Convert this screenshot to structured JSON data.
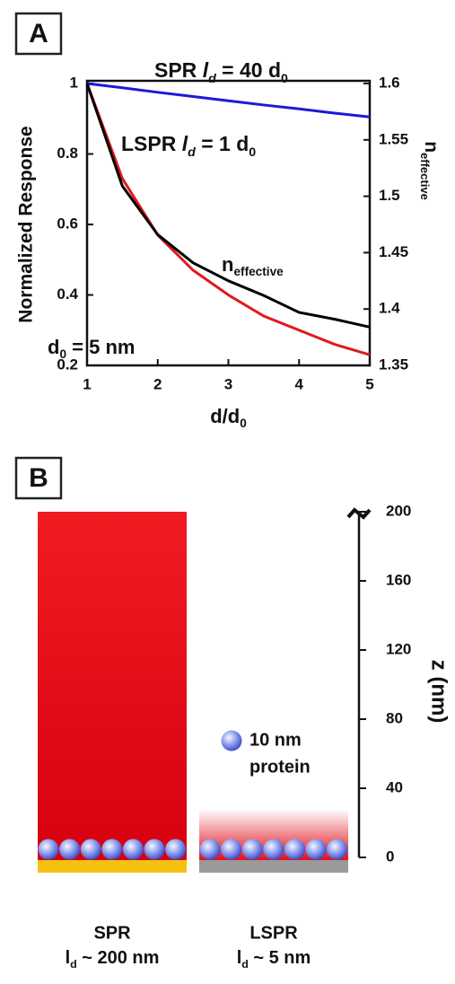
{
  "chart_data": [
    {
      "type": "line",
      "panel_label": "A",
      "xlabel": [
        {
          "text": "d/d"
        },
        {
          "text": "0",
          "style": "sub"
        }
      ],
      "ylabel": "Normalized Response",
      "y2label": [
        {
          "text": "n"
        },
        {
          "text": "effective",
          "style": "sub"
        }
      ],
      "x": [
        1,
        1.5,
        2,
        2.5,
        3,
        3.5,
        4,
        4.5,
        5
      ],
      "xlim": [
        1,
        5
      ],
      "xticks": [
        1,
        2,
        3,
        4,
        5
      ],
      "ylim": [
        0.2,
        1
      ],
      "yticks": [
        0.2,
        0.4,
        0.6,
        0.8,
        1
      ],
      "y2lim": [
        1.35,
        1.6
      ],
      "y2ticks": [
        1.35,
        1.4,
        1.45,
        1.5,
        1.55,
        1.6
      ],
      "series": [
        {
          "name": [
            {
              "text": "SPR "
            },
            {
              "text": "l",
              "style": "italic"
            },
            {
              "text": "d",
              "style": "sub-italic"
            },
            {
              "text": " = 40 d"
            },
            {
              "text": "0",
              "style": "sub"
            }
          ],
          "color": "#1a1ad6",
          "values": [
            1,
            0.988,
            0.975,
            0.963,
            0.951,
            0.939,
            0.928,
            0.916,
            0.905
          ]
        },
        {
          "name": [
            {
              "text": "LSPR "
            },
            {
              "text": "l",
              "style": "italic"
            },
            {
              "text": "d",
              "style": "sub-italic"
            },
            {
              "text": " = 1 d"
            },
            {
              "text": "0",
              "style": "sub"
            }
          ],
          "color": "#e0191e",
          "values": [
            1,
            0.73,
            0.57,
            0.47,
            0.4,
            0.34,
            0.3,
            0.26,
            0.23
          ]
        },
        {
          "name": [
            {
              "text": "n"
            },
            {
              "text": "effective",
              "style": "sub"
            }
          ],
          "color": "#000000",
          "axis": "y2",
          "values": [
            1.6,
            1.509,
            1.466,
            1.441,
            1.425,
            1.412,
            1.397,
            1.391,
            1.384
          ]
        }
      ],
      "annotations": [
        [
          {
            "text": "d"
          },
          {
            "text": "0",
            "style": "sub"
          },
          {
            "text": " = 5 nm"
          }
        ]
      ]
    },
    {
      "type": "bar",
      "panel_label": "B",
      "categories": [
        "SPR",
        "LSPR"
      ],
      "category_sublabels": [
        [
          {
            "text": "l"
          },
          {
            "text": "d",
            "style": "sub"
          },
          {
            "text": " ~ 200 nm"
          }
        ],
        [
          {
            "text": "l"
          },
          {
            "text": "d",
            "style": "sub"
          },
          {
            "text": " ~ 5 nm"
          }
        ]
      ],
      "values": [
        200,
        28
      ],
      "ylabel": "z (nm)",
      "ylim": [
        0,
        200
      ],
      "yticks": [
        0,
        40,
        80,
        120,
        160,
        200
      ],
      "annotations": [
        "10 nm",
        "protein"
      ]
    }
  ]
}
